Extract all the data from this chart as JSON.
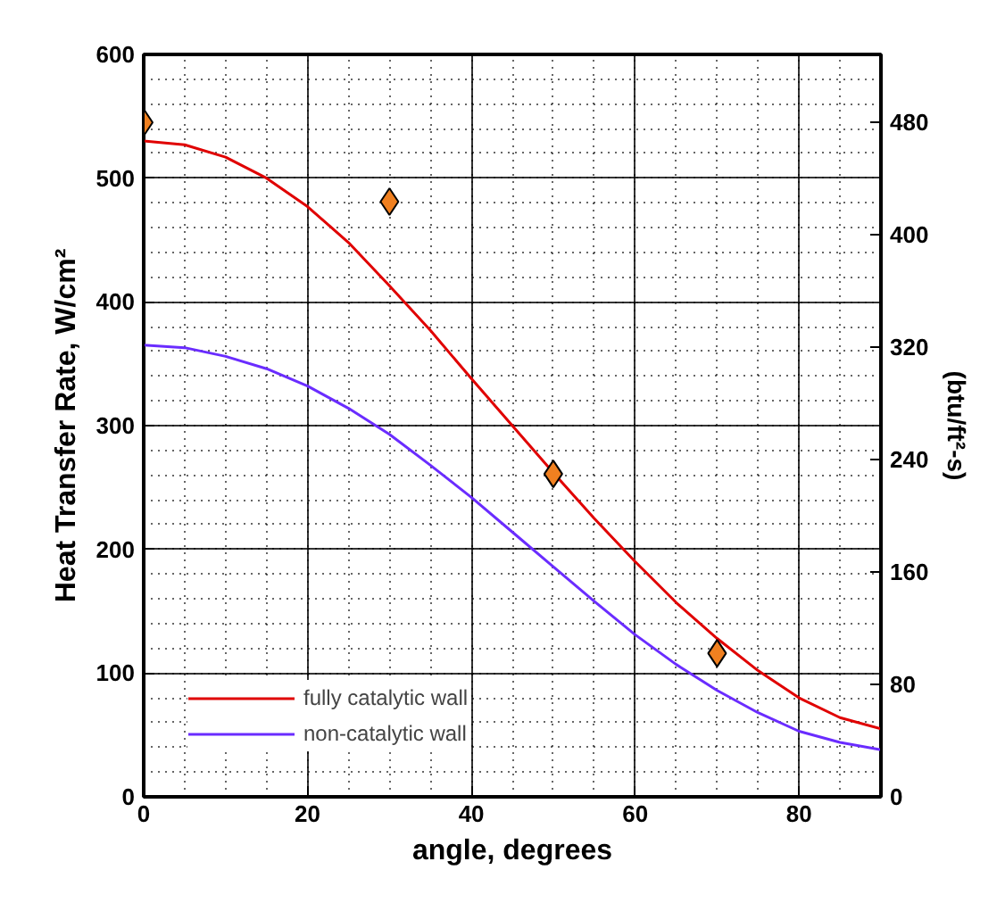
{
  "chart_data": {
    "type": "line",
    "xlabel": "angle, degrees",
    "ylabel": "Heat Transfer Rate, W/cm²",
    "y2label": "(btu/ft²-s)",
    "xlim": [
      0,
      90
    ],
    "xticks": [
      0,
      20,
      40,
      60,
      80
    ],
    "ylim": [
      0,
      600
    ],
    "yticks": [
      0,
      100,
      200,
      300,
      400,
      500,
      600
    ],
    "y2lim": [
      0,
      528.3
    ],
    "y2ticks": [
      0,
      80,
      160,
      240,
      320,
      400,
      480
    ],
    "grid": true,
    "legend": "bottom left",
    "series": [
      {
        "name": "fully catalytic wall",
        "color": "#e00000",
        "x": [
          0,
          5,
          10,
          15,
          20,
          25,
          30,
          35,
          40,
          45,
          50,
          55,
          60,
          65,
          70,
          75,
          80,
          85,
          90
        ],
        "values": [
          530,
          527,
          517,
          500,
          477,
          448,
          413,
          377,
          338,
          300,
          262,
          225,
          190,
          157,
          128,
          102,
          80,
          64,
          55
        ]
      },
      {
        "name": "non-catalytic wall",
        "color": "#6a2cff",
        "x": [
          0,
          5,
          10,
          15,
          20,
          25,
          30,
          35,
          40,
          45,
          50,
          55,
          60,
          65,
          70,
          75,
          80,
          85,
          90
        ],
        "values": [
          365,
          363,
          356,
          346,
          332,
          314,
          293,
          268,
          242,
          214,
          186,
          158,
          131,
          107,
          86,
          68,
          53,
          44,
          38
        ]
      },
      {
        "color": "#f08020",
        "type": "scatter",
        "marker": "diamond",
        "x": [
          0,
          30,
          50,
          70
        ],
        "values": [
          545,
          481,
          261,
          116
        ]
      }
    ]
  }
}
